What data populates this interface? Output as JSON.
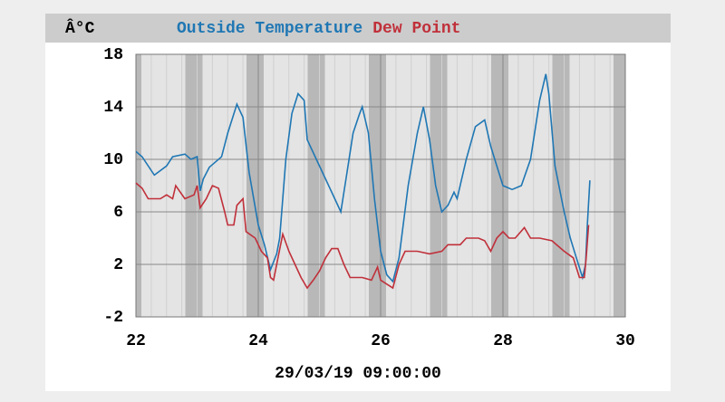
{
  "chart_data": {
    "type": "line",
    "unit_label": "Â°C",
    "timestamp": "29/03/19 09:00:00",
    "xlim": [
      22,
      30
    ],
    "xticks": [
      22,
      24,
      26,
      28,
      30
    ],
    "ylim": [
      -2,
      18
    ],
    "yticks": [
      -2,
      2,
      6,
      10,
      14,
      18
    ],
    "grid": true,
    "series": [
      {
        "name": "Outside Temperature",
        "color": "#1f77b4",
        "x": [
          22.0,
          22.1,
          22.3,
          22.5,
          22.6,
          22.8,
          22.9,
          23.0,
          23.05,
          23.1,
          23.2,
          23.4,
          23.5,
          23.65,
          23.75,
          23.85,
          24.0,
          24.1,
          24.2,
          24.3,
          24.35,
          24.45,
          24.55,
          24.65,
          24.75,
          24.8,
          24.95,
          25.1,
          25.25,
          25.35,
          25.45,
          25.55,
          25.65,
          25.7,
          25.8,
          25.9,
          26.0,
          26.1,
          26.2,
          26.3,
          26.45,
          26.6,
          26.7,
          26.8,
          26.9,
          27.0,
          27.1,
          27.2,
          27.25,
          27.4,
          27.55,
          27.7,
          27.8,
          27.9,
          28.0,
          28.15,
          28.3,
          28.45,
          28.6,
          28.7,
          28.75,
          28.85,
          29.0,
          29.1,
          29.2,
          29.3,
          29.35,
          29.38,
          29.42
        ],
        "values": [
          10.6,
          10.2,
          8.8,
          9.5,
          10.2,
          10.4,
          10.0,
          10.2,
          7.6,
          8.5,
          9.4,
          10.2,
          12.0,
          14.2,
          13.2,
          9.0,
          5.0,
          3.5,
          1.6,
          2.8,
          4.0,
          10.0,
          13.5,
          15.0,
          14.5,
          11.5,
          10.0,
          8.5,
          7.0,
          6.0,
          9.0,
          12.0,
          13.4,
          14.0,
          12.0,
          7.0,
          3.0,
          1.2,
          0.7,
          2.5,
          8.0,
          12.0,
          14.0,
          11.5,
          8.0,
          6.0,
          6.5,
          7.5,
          7.0,
          10.0,
          12.5,
          13.0,
          11.0,
          9.5,
          8.0,
          7.7,
          8.0,
          10.0,
          14.5,
          16.5,
          15.0,
          9.5,
          6.0,
          4.0,
          2.5,
          1.0,
          2.0,
          5.0,
          8.4
        ]
      },
      {
        "name": "Dew Point",
        "color": "#c0303a",
        "x": [
          22.0,
          22.1,
          22.2,
          22.4,
          22.5,
          22.6,
          22.65,
          22.8,
          22.95,
          23.0,
          23.05,
          23.15,
          23.25,
          23.35,
          23.45,
          23.5,
          23.6,
          23.65,
          23.75,
          23.8,
          23.95,
          24.05,
          24.15,
          24.2,
          24.25,
          24.3,
          24.4,
          24.5,
          24.6,
          24.7,
          24.8,
          24.9,
          25.0,
          25.1,
          25.2,
          25.3,
          25.4,
          25.5,
          25.7,
          25.85,
          25.95,
          26.0,
          26.1,
          26.2,
          26.3,
          26.4,
          26.6,
          26.8,
          27.0,
          27.1,
          27.3,
          27.4,
          27.6,
          27.7,
          27.8,
          27.9,
          28.0,
          28.1,
          28.2,
          28.35,
          28.45,
          28.6,
          28.8,
          29.0,
          29.15,
          29.25,
          29.33,
          29.36,
          29.4
        ],
        "values": [
          8.2,
          7.8,
          7.0,
          7.0,
          7.3,
          7.0,
          8.0,
          7.0,
          7.3,
          8.0,
          6.3,
          7.0,
          8.0,
          7.8,
          6.0,
          5.0,
          5.0,
          6.5,
          7.0,
          4.5,
          4.0,
          3.0,
          2.5,
          1.0,
          0.8,
          2.0,
          4.3,
          3.0,
          2.0,
          1.0,
          0.2,
          0.8,
          1.5,
          2.5,
          3.2,
          3.2,
          2.0,
          1.0,
          1.0,
          0.8,
          1.8,
          0.8,
          0.5,
          0.2,
          2.0,
          3.0,
          3.0,
          2.8,
          3.0,
          3.5,
          3.5,
          4.0,
          4.0,
          3.8,
          3.0,
          4.0,
          4.5,
          4.0,
          4.0,
          4.8,
          4.0,
          4.0,
          3.8,
          3.0,
          2.5,
          1.0,
          1.0,
          2.5,
          5.0
        ]
      }
    ]
  }
}
